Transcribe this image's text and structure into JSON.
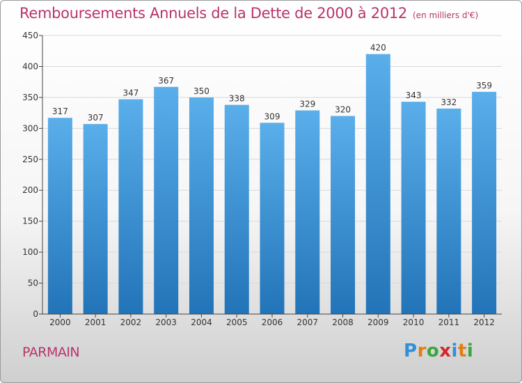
{
  "header": {
    "title": "Remboursements Annuels de la Dette de 2000 à 2012",
    "unit": "(en milliers d'€)"
  },
  "footer": {
    "commune": "PARMAIN",
    "logo_letters": [
      "P",
      "r",
      "o",
      "x",
      "i",
      "t",
      "i"
    ],
    "logo_colors": [
      "#2f8fd8",
      "#e07f14",
      "#3aa63a",
      "#d6262a",
      "#2f8fd8",
      "#e07f14",
      "#3aa63a"
    ]
  },
  "colors": {
    "bar_top": "#5aaeea",
    "bar_bottom": "#2274b8",
    "grid": "#d9d9d9",
    "axis": "#444444",
    "title": "#b8336a"
  },
  "chart_data": {
    "type": "bar",
    "title": "Remboursements Annuels de la Dette de 2000 à 2012",
    "subtitle": "(en milliers d'€)",
    "categories": [
      "2000",
      "2001",
      "2002",
      "2003",
      "2004",
      "2005",
      "2006",
      "2007",
      "2008",
      "2009",
      "2010",
      "2011",
      "2012"
    ],
    "values": [
      317,
      307,
      347,
      367,
      350,
      338,
      309,
      329,
      320,
      420,
      343,
      332,
      359
    ],
    "ylim": [
      0,
      450
    ],
    "yticks": [
      0,
      50,
      100,
      150,
      200,
      250,
      300,
      350,
      400,
      450
    ],
    "grid": true,
    "legend": "none"
  }
}
